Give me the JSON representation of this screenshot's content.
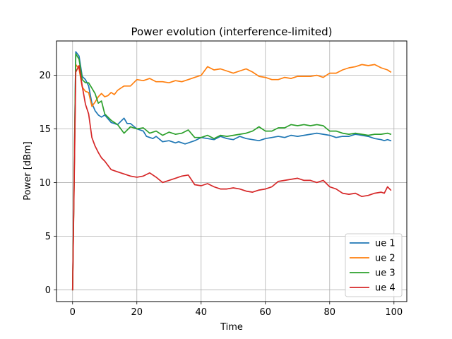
{
  "chart_data": {
    "type": "line",
    "title": "Power evolution (interference-limited)",
    "xlabel": "Time",
    "ylabel": "Power [dBm]",
    "xlim": [
      -5,
      104
    ],
    "ylim": [
      -1.1,
      23.2
    ],
    "xticks": [
      0,
      20,
      40,
      60,
      80,
      100
    ],
    "yticks": [
      0,
      5,
      10,
      15,
      20
    ],
    "grid": true,
    "legend_position": "lower right",
    "series": [
      {
        "name": "ue 1",
        "color": "#1f77b4",
        "x": [
          0,
          1,
          2,
          3,
          4,
          5,
          6,
          7,
          8,
          9,
          10,
          12,
          14,
          16,
          17,
          18,
          20,
          22,
          23,
          25,
          26,
          28,
          30,
          32,
          33,
          35,
          36,
          38,
          40,
          42,
          44,
          46,
          48,
          50,
          52,
          54,
          56,
          58,
          60,
          62,
          64,
          66,
          68,
          70,
          72,
          74,
          76,
          78,
          80,
          82,
          84,
          86,
          88,
          90,
          92,
          94,
          96,
          97,
          98,
          99
        ],
        "y": [
          0,
          22.2,
          21.8,
          19.9,
          19.6,
          19.0,
          17.4,
          16.7,
          16.3,
          16.1,
          16.3,
          15.6,
          15.4,
          16.0,
          15.5,
          15.5,
          15.0,
          14.8,
          14.3,
          14.1,
          14.3,
          13.8,
          13.9,
          13.7,
          13.8,
          13.6,
          13.7,
          13.9,
          14.2,
          14.1,
          14.0,
          14.3,
          14.1,
          14.0,
          14.3,
          14.1,
          14.0,
          13.9,
          14.1,
          14.2,
          14.3,
          14.2,
          14.4,
          14.3,
          14.4,
          14.5,
          14.6,
          14.5,
          14.4,
          14.2,
          14.3,
          14.3,
          14.5,
          14.4,
          14.3,
          14.1,
          14.0,
          13.9,
          14.0,
          13.9
        ]
      },
      {
        "name": "ue 2",
        "color": "#ff7f0e",
        "x": [
          0,
          1,
          2,
          3,
          4,
          5,
          6,
          7,
          8,
          9,
          10,
          11,
          12,
          13,
          14,
          15,
          16,
          18,
          20,
          22,
          24,
          26,
          28,
          30,
          32,
          34,
          36,
          38,
          40,
          42,
          44,
          46,
          48,
          50,
          52,
          54,
          56,
          58,
          60,
          62,
          64,
          66,
          68,
          70,
          72,
          74,
          76,
          78,
          80,
          82,
          84,
          86,
          88,
          90,
          92,
          94,
          96,
          98,
          99
        ],
        "y": [
          0,
          21.0,
          20.6,
          18.9,
          18.5,
          18.4,
          17.1,
          17.5,
          18.0,
          18.3,
          18.0,
          18.1,
          18.4,
          18.2,
          18.6,
          18.8,
          19.0,
          19.0,
          19.6,
          19.5,
          19.7,
          19.4,
          19.4,
          19.3,
          19.5,
          19.4,
          19.6,
          19.8,
          20.0,
          20.8,
          20.5,
          20.6,
          20.4,
          20.2,
          20.4,
          20.6,
          20.3,
          19.9,
          19.8,
          19.6,
          19.6,
          19.8,
          19.7,
          19.9,
          19.9,
          19.9,
          20.0,
          19.8,
          20.2,
          20.2,
          20.5,
          20.7,
          20.8,
          21.0,
          20.9,
          21.0,
          20.7,
          20.5,
          20.3
        ]
      },
      {
        "name": "ue 3",
        "color": "#2ca02c",
        "x": [
          0,
          1,
          2,
          3,
          4,
          5,
          6,
          7,
          8,
          9,
          10,
          12,
          14,
          16,
          18,
          20,
          22,
          24,
          26,
          28,
          30,
          32,
          34,
          36,
          38,
          40,
          42,
          44,
          46,
          48,
          50,
          52,
          54,
          56,
          58,
          60,
          62,
          64,
          66,
          68,
          70,
          72,
          74,
          76,
          78,
          80,
          82,
          84,
          86,
          88,
          90,
          92,
          94,
          96,
          98,
          99
        ],
        "y": [
          0,
          22.0,
          21.5,
          19.6,
          19.3,
          19.3,
          18.8,
          18.3,
          17.4,
          17.6,
          16.4,
          15.8,
          15.4,
          14.6,
          15.2,
          15.0,
          15.1,
          14.6,
          14.8,
          14.4,
          14.7,
          14.5,
          14.6,
          14.9,
          14.2,
          14.2,
          14.4,
          14.1,
          14.4,
          14.3,
          14.4,
          14.5,
          14.6,
          14.8,
          15.2,
          14.8,
          14.8,
          15.1,
          15.1,
          15.4,
          15.3,
          15.4,
          15.3,
          15.4,
          15.3,
          14.8,
          14.8,
          14.6,
          14.5,
          14.6,
          14.5,
          14.4,
          14.5,
          14.5,
          14.6,
          14.5
        ]
      },
      {
        "name": "ue 4",
        "color": "#d62728",
        "x": [
          0,
          1,
          2,
          3,
          4,
          5,
          6,
          7,
          8,
          9,
          10,
          12,
          14,
          16,
          18,
          20,
          22,
          24,
          26,
          28,
          30,
          32,
          34,
          36,
          38,
          40,
          42,
          44,
          46,
          48,
          50,
          52,
          54,
          56,
          58,
          60,
          62,
          64,
          66,
          68,
          70,
          72,
          74,
          76,
          78,
          80,
          82,
          84,
          86,
          88,
          90,
          92,
          94,
          96,
          97,
          98,
          99
        ],
        "y": [
          0,
          20.3,
          20.9,
          19.0,
          17.3,
          16.4,
          14.2,
          13.4,
          12.8,
          12.3,
          12.0,
          11.2,
          11.0,
          10.8,
          10.6,
          10.5,
          10.6,
          10.9,
          10.5,
          10.0,
          10.2,
          10.4,
          10.6,
          10.7,
          9.8,
          9.7,
          9.9,
          9.6,
          9.4,
          9.4,
          9.5,
          9.4,
          9.2,
          9.1,
          9.3,
          9.4,
          9.6,
          10.1,
          10.2,
          10.3,
          10.4,
          10.2,
          10.2,
          10.0,
          10.2,
          9.6,
          9.4,
          9.0,
          8.9,
          9.0,
          8.7,
          8.8,
          9.0,
          9.1,
          9.0,
          9.6,
          9.3
        ]
      }
    ]
  }
}
